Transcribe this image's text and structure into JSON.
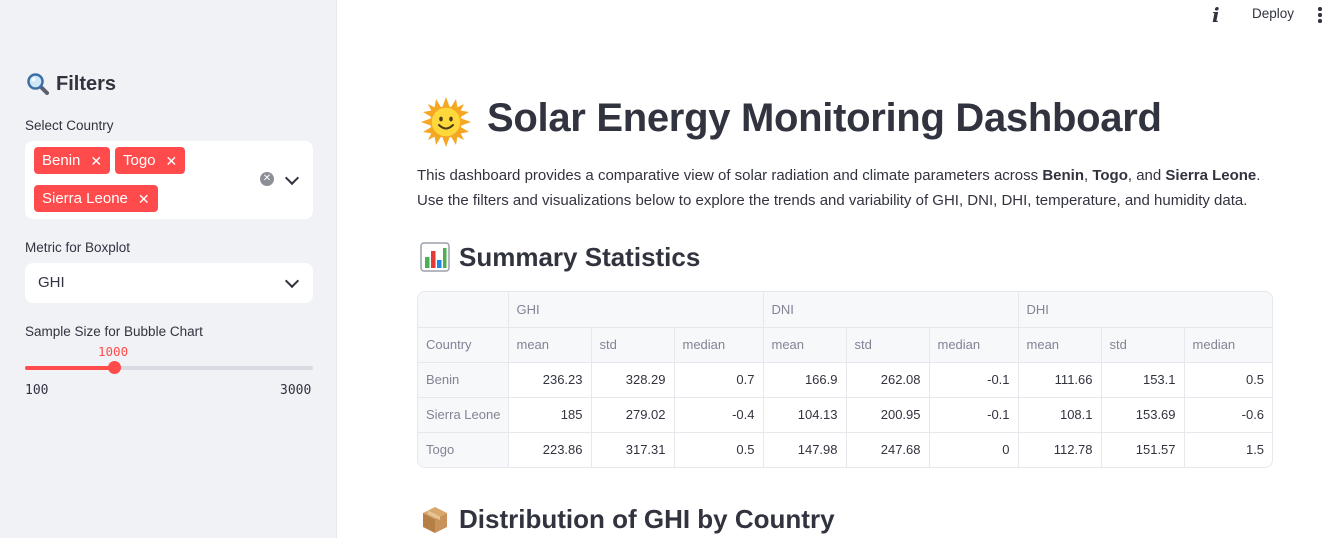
{
  "header": {
    "deploy_label": "Deploy"
  },
  "sidebar": {
    "title": "Filters",
    "country_label": "Select Country",
    "selected_countries": [
      "Benin",
      "Togo",
      "Sierra Leone"
    ],
    "metric_label": "Metric for Boxplot",
    "metric_value": "GHI",
    "sample_label": "Sample Size for Bubble Chart",
    "sample_value": "1000",
    "sample_min": "100",
    "sample_max": "3000"
  },
  "main": {
    "title": "Solar Energy Monitoring Dashboard",
    "desc_1": "This dashboard provides a comparative view of solar radiation and climate parameters across ",
    "desc_c1": "Benin",
    "desc_sep1": ", ",
    "desc_c2": "Togo",
    "desc_sep2": ", and ",
    "desc_c3": "Sierra Leone",
    "desc_2": ". Use the filters and visualizations below to explore the trends and variability of GHI, DNI, DHI, temperature, and humidity data.",
    "summary_title": "Summary Statistics",
    "distribution_title": "Distribution of GHI by Country"
  },
  "table": {
    "groups": [
      "GHI",
      "DNI",
      "DHI"
    ],
    "index_label": "Country",
    "columns": [
      "mean",
      "std",
      "median",
      "mean",
      "std",
      "median",
      "mean",
      "std",
      "median"
    ],
    "rows": [
      {
        "name": "Benin",
        "values": [
          "236.23",
          "328.29",
          "0.7",
          "166.9",
          "262.08",
          "-0.1",
          "111.66",
          "153.1",
          "0.5"
        ]
      },
      {
        "name": "Sierra Leone",
        "values": [
          "185",
          "279.02",
          "-0.4",
          "104.13",
          "200.95",
          "-0.1",
          "108.1",
          "153.69",
          "-0.6"
        ]
      },
      {
        "name": "Togo",
        "values": [
          "223.86",
          "317.31",
          "0.5",
          "147.98",
          "247.68",
          "0",
          "112.78",
          "151.57",
          "1.5"
        ]
      }
    ]
  }
}
